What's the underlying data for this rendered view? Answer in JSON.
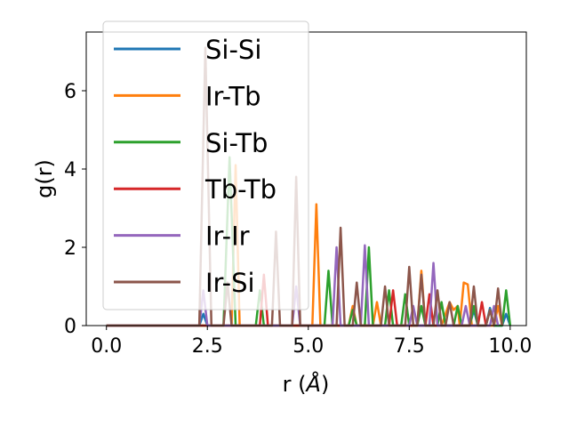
{
  "chart_data": {
    "type": "line",
    "xlabel": "r (",
    "xlabel_unit": "Å",
    "xlabel_close": ")",
    "ylabel": "g(r)",
    "xlim": [
      -0.5,
      10.4
    ],
    "ylim": [
      0,
      7.5
    ],
    "xticks": [
      0.0,
      2.5,
      5.0,
      7.5,
      10.0
    ],
    "xtick_labels": [
      "0.0",
      "2.5",
      "5.0",
      "7.5",
      "10.0"
    ],
    "yticks": [
      0,
      2,
      4,
      6
    ],
    "ytick_labels": [
      "0",
      "2",
      "4",
      "6"
    ],
    "grid": false,
    "legend_position": "upper-left",
    "series": [
      {
        "name": "Si-Si",
        "color": "#1f77b4",
        "points": [
          [
            0,
            0
          ],
          [
            2.3,
            0
          ],
          [
            2.4,
            0.3
          ],
          [
            2.5,
            0
          ],
          [
            9.0,
            0
          ],
          [
            9.1,
            0.4
          ],
          [
            9.2,
            0
          ],
          [
            9.4,
            0
          ],
          [
            9.5,
            0.45
          ],
          [
            9.6,
            0
          ],
          [
            9.8,
            0
          ],
          [
            9.9,
            0.3
          ],
          [
            10.0,
            0
          ]
        ]
      },
      {
        "name": "Ir-Tb",
        "color": "#ff7f0e",
        "points": [
          [
            0,
            0
          ],
          [
            3.1,
            0
          ],
          [
            3.2,
            4.1
          ],
          [
            3.3,
            0
          ],
          [
            5.1,
            0
          ],
          [
            5.2,
            3.1
          ],
          [
            5.3,
            0
          ],
          [
            6.0,
            0
          ],
          [
            6.1,
            0.5
          ],
          [
            6.2,
            0
          ],
          [
            6.6,
            0
          ],
          [
            6.7,
            0.6
          ],
          [
            6.8,
            0
          ],
          [
            7.7,
            0
          ],
          [
            7.8,
            1.4
          ],
          [
            7.9,
            0
          ],
          [
            8.3,
            0
          ],
          [
            8.5,
            0.6
          ],
          [
            8.6,
            0.4
          ],
          [
            8.7,
            0.5
          ],
          [
            8.75,
            0
          ],
          [
            8.85,
            1.1
          ],
          [
            8.95,
            1.05
          ],
          [
            9.05,
            0
          ],
          [
            9.6,
            0
          ],
          [
            9.7,
            0.5
          ],
          [
            9.8,
            0
          ]
        ]
      },
      {
        "name": "Si-Tb",
        "color": "#2ca02c",
        "points": [
          [
            0,
            0
          ],
          [
            2.9,
            0
          ],
          [
            3.05,
            4.3
          ],
          [
            3.2,
            0
          ],
          [
            3.7,
            0
          ],
          [
            3.8,
            0.9
          ],
          [
            3.9,
            0
          ],
          [
            5.4,
            0
          ],
          [
            5.5,
            1.4
          ],
          [
            5.6,
            0
          ],
          [
            6.0,
            0
          ],
          [
            6.1,
            0.4
          ],
          [
            6.2,
            0
          ],
          [
            6.4,
            0
          ],
          [
            6.5,
            2.0
          ],
          [
            6.6,
            0
          ],
          [
            6.9,
            0
          ],
          [
            7.0,
            0.9
          ],
          [
            7.1,
            0
          ],
          [
            7.3,
            0
          ],
          [
            7.4,
            0.8
          ],
          [
            7.5,
            0
          ],
          [
            7.7,
            0
          ],
          [
            7.8,
            0.5
          ],
          [
            7.9,
            0
          ],
          [
            8.2,
            0
          ],
          [
            8.3,
            0.6
          ],
          [
            8.4,
            0
          ],
          [
            8.6,
            0
          ],
          [
            8.7,
            0.5
          ],
          [
            8.8,
            0
          ],
          [
            9.0,
            0
          ],
          [
            9.1,
            0.5
          ],
          [
            9.2,
            0
          ],
          [
            9.4,
            0
          ],
          [
            9.5,
            0.4
          ],
          [
            9.6,
            0
          ],
          [
            9.8,
            0
          ],
          [
            9.9,
            0.9
          ],
          [
            10.0,
            0
          ]
        ]
      },
      {
        "name": "Tb-Tb",
        "color": "#d62728",
        "points": [
          [
            0,
            0
          ],
          [
            3.8,
            0
          ],
          [
            3.9,
            1.3
          ],
          [
            4.0,
            0
          ],
          [
            7.0,
            0
          ],
          [
            7.1,
            0.9
          ],
          [
            7.2,
            0
          ],
          [
            7.9,
            0
          ],
          [
            8.0,
            0.8
          ],
          [
            8.1,
            0
          ],
          [
            9.2,
            0
          ],
          [
            9.3,
            0.6
          ],
          [
            9.4,
            0
          ]
        ]
      },
      {
        "name": "Ir-Ir",
        "color": "#9467bd",
        "points": [
          [
            0,
            0
          ],
          [
            2.3,
            0
          ],
          [
            2.4,
            0.9
          ],
          [
            2.5,
            0
          ],
          [
            4.6,
            0
          ],
          [
            4.7,
            1.0
          ],
          [
            4.8,
            0
          ],
          [
            5.6,
            0
          ],
          [
            5.7,
            2.0
          ],
          [
            5.8,
            0
          ],
          [
            6.3,
            0
          ],
          [
            6.4,
            2.05
          ],
          [
            6.5,
            0
          ],
          [
            7.5,
            0
          ],
          [
            7.6,
            0.5
          ],
          [
            7.7,
            0
          ],
          [
            8.0,
            0
          ],
          [
            8.1,
            1.6
          ],
          [
            8.2,
            0
          ],
          [
            8.8,
            0
          ],
          [
            8.9,
            0.5
          ],
          [
            9.0,
            0
          ],
          [
            9.5,
            0
          ],
          [
            9.6,
            0.5
          ],
          [
            9.7,
            0
          ]
        ]
      },
      {
        "name": "Ir-Si",
        "color": "#8c564b",
        "points": [
          [
            0,
            0
          ],
          [
            2.3,
            0
          ],
          [
            2.45,
            7.1
          ],
          [
            2.6,
            0
          ],
          [
            2.9,
            0
          ],
          [
            3.0,
            1.1
          ],
          [
            3.1,
            0
          ],
          [
            4.1,
            0
          ],
          [
            4.2,
            2.4
          ],
          [
            4.3,
            0
          ],
          [
            4.6,
            0
          ],
          [
            4.7,
            3.8
          ],
          [
            4.8,
            0
          ],
          [
            5.7,
            0
          ],
          [
            5.8,
            2.5
          ],
          [
            5.9,
            0
          ],
          [
            6.1,
            0
          ],
          [
            6.2,
            1.1
          ],
          [
            6.3,
            0
          ],
          [
            6.8,
            0
          ],
          [
            6.9,
            1.0
          ],
          [
            7.0,
            0
          ],
          [
            7.4,
            0
          ],
          [
            7.5,
            1.5
          ],
          [
            7.6,
            0
          ],
          [
            7.7,
            0
          ],
          [
            7.8,
            1.3
          ],
          [
            7.9,
            0
          ],
          [
            8.1,
            0
          ],
          [
            8.2,
            0.9
          ],
          [
            8.3,
            0
          ],
          [
            8.4,
            0
          ],
          [
            8.5,
            0.6
          ],
          [
            8.6,
            0
          ],
          [
            9.0,
            0
          ],
          [
            9.1,
            1.0
          ],
          [
            9.2,
            0
          ],
          [
            9.4,
            0
          ],
          [
            9.5,
            0.4
          ],
          [
            9.6,
            0
          ],
          [
            9.6,
            0
          ],
          [
            9.7,
            0.95
          ],
          [
            9.8,
            0
          ]
        ]
      }
    ]
  }
}
